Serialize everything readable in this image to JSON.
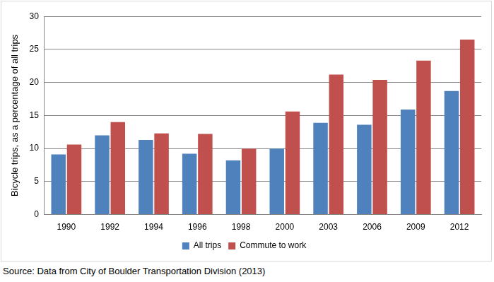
{
  "chart_data": {
    "type": "bar",
    "y_label": "Bicycle trips, as a percentage of all trips",
    "annotations": [
      "Source: Data from City of Boulder Transportation Division (2013)"
    ],
    "categories": [
      "1990",
      "1992",
      "1994",
      "1996",
      "1998",
      "2000",
      "2003",
      "2006",
      "2009",
      "2012"
    ],
    "series": [
      {
        "name": "All trips",
        "color": "#4f81bd",
        "values": [
          9.1,
          12.0,
          11.3,
          9.2,
          8.2,
          10.0,
          13.9,
          13.6,
          15.9,
          18.7
        ]
      },
      {
        "name": "Commute to work",
        "color": "#c0504d",
        "values": [
          10.6,
          14.0,
          12.3,
          12.2,
          10.0,
          15.6,
          21.2,
          20.4,
          23.3,
          26.5
        ]
      }
    ],
    "ylim": [
      0,
      30
    ],
    "yticks": [
      0,
      5,
      10,
      15,
      20,
      25,
      30
    ],
    "grid": true,
    "legend": "bottom"
  }
}
